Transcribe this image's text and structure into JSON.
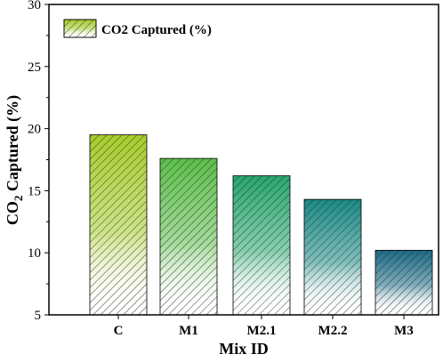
{
  "chart_data": {
    "type": "bar",
    "categories": [
      "C",
      "M1",
      "M2.1",
      "M2.2",
      "M3"
    ],
    "series": [
      {
        "name": "CO2 Captured (%)",
        "values": [
          19.5,
          17.6,
          16.2,
          14.3,
          10.2
        ]
      }
    ],
    "bar_colors": [
      "#a6cc2a",
      "#5cbf4a",
      "#27a86e",
      "#1a8a85",
      "#1c6b86"
    ],
    "xlabel": "Mix ID",
    "ylabel_parts": {
      "before": "CO",
      "sub": "2",
      "after": " Captured (%)"
    },
    "ylim": [
      5,
      30
    ],
    "yticks": [
      "5",
      "10",
      "15",
      "20",
      "25",
      "30"
    ],
    "legend_position": "top-left",
    "grid": false,
    "fill_pattern": "diagonal-hatch-gradient"
  }
}
